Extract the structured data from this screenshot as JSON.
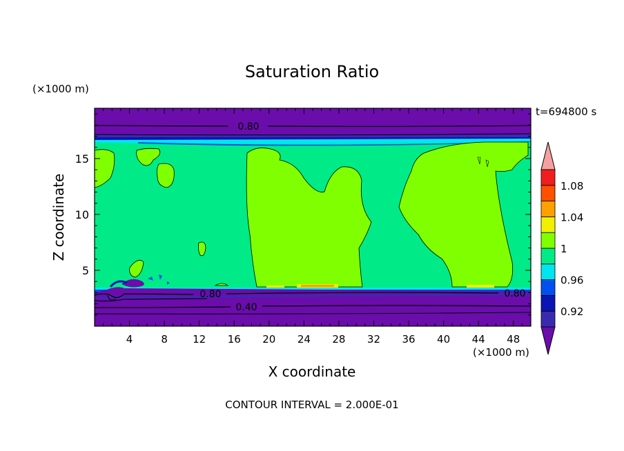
{
  "chart_data": {
    "type": "contour",
    "title": "Saturation Ratio",
    "xlabel": "X coordinate",
    "ylabel": "Z coordinate",
    "x_unit": "(×1000 m)",
    "y_unit": "(×1000 m)",
    "time_label": "t=694800 s",
    "footer": "CONTOUR INTERVAL = 2.000E-01",
    "xlim": [
      0,
      50
    ],
    "ylim": [
      0,
      19.5
    ],
    "x_ticks": [
      "4",
      "8",
      "12",
      "16",
      "20",
      "24",
      "28",
      "32",
      "36",
      "40",
      "44",
      "48"
    ],
    "y_ticks": [
      "5",
      "10",
      "15"
    ],
    "contour_labels": [
      "0.80",
      "0.80",
      "0.40",
      "0.80"
    ],
    "colorbar": {
      "tick_labels": [
        "1.08",
        "1.04",
        "1",
        "0.96",
        "0.92"
      ],
      "levels": [
        {
          "range": "<0.90",
          "color": "#6a0dab"
        },
        {
          "range": "0.90-0.92",
          "color": "#3a2ab0"
        },
        {
          "range": "0.92-0.94",
          "color": "#0b14b5"
        },
        {
          "range": "0.94-0.96",
          "color": "#0050f0"
        },
        {
          "range": "0.96-0.98",
          "color": "#00e6f0"
        },
        {
          "range": "0.98-1.00",
          "color": "#00eb87"
        },
        {
          "range": "1.00-1.02",
          "color": "#80ff00"
        },
        {
          "range": "1.02-1.04",
          "color": "#f0f000"
        },
        {
          "range": "1.04-1.06",
          "color": "#ffa000"
        },
        {
          "range": "1.06-1.08",
          "color": "#ff5000"
        },
        {
          "range": "1.08-1.10",
          "color": "#f01e1e"
        },
        {
          "range": ">1.10",
          "color": "#f5a0a0"
        }
      ]
    }
  }
}
